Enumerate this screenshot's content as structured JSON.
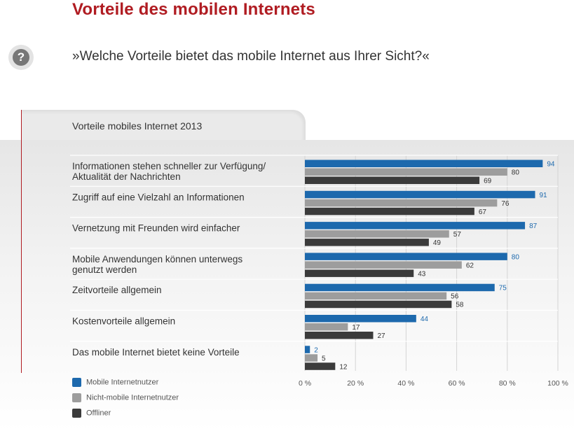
{
  "title": "Vorteile des mobilen Internets",
  "question": "»Welche Vorteile bietet das mobile Internet aus Ihrer Sicht?«",
  "icons": {
    "question": "question-mark-icon"
  },
  "colors": {
    "title": "#b01c22",
    "mobile": "#1d69ad",
    "nonmobile": "#9d9d9d",
    "offliner": "#3b3b3b"
  },
  "chart_data": {
    "type": "bar",
    "orientation": "horizontal",
    "title": "Vorteile mobiles Internet 2013",
    "categories": [
      [
        "Informationen stehen schneller zur Verfügung/",
        "Aktualität der Nachrichten"
      ],
      [
        "Zugriff auf eine Vielzahl an Informationen"
      ],
      [
        "Vernetzung mit Freunden wird einfacher"
      ],
      [
        "Mobile Anwendungen können unterwegs",
        "genutzt werden"
      ],
      [
        "Zeitvorteile allgemein"
      ],
      [
        "Kostenvorteile allgemein"
      ],
      [
        "Das mobile Internet bietet keine Vorteile"
      ]
    ],
    "series": [
      {
        "name": "Mobile Internetnutzer",
        "color": "#1d69ad",
        "values": [
          94,
          91,
          87,
          80,
          75,
          44,
          2
        ]
      },
      {
        "name": "Nicht-mobile Internetnutzer",
        "color": "#9d9d9d",
        "values": [
          80,
          76,
          57,
          62,
          56,
          17,
          5
        ]
      },
      {
        "name": "Offliner",
        "color": "#3b3b3b",
        "values": [
          69,
          67,
          49,
          43,
          58,
          27,
          12
        ]
      }
    ],
    "xlim": [
      0,
      100
    ],
    "xticks": [
      "0 %",
      "20 %",
      "40 %",
      "60 %",
      "80 %",
      "100 %"
    ],
    "grid": true,
    "legend": "bottom-left"
  }
}
